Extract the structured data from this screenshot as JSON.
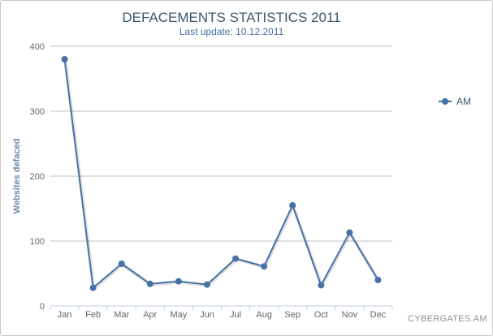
{
  "chart_data": {
    "type": "line",
    "title": "DEFACEMENTS STATISTICS 2011",
    "subtitle": "Last update: 10.12.2011",
    "ylabel": "Websites defaced",
    "xlabel": "",
    "categories": [
      "Jan",
      "Feb",
      "Mar",
      "Apr",
      "May",
      "Jun",
      "Jul",
      "Aug",
      "Sep",
      "Oct",
      "Nov",
      "Dec"
    ],
    "series": [
      {
        "name": "AM",
        "values": [
          380,
          28,
          65,
          34,
          38,
          33,
          73,
          61,
          155,
          32,
          113,
          40
        ]
      }
    ],
    "ylim": [
      0,
      400
    ],
    "yticks": [
      0,
      100,
      200,
      300,
      400
    ],
    "grid": true,
    "legend": "right",
    "credit": "CYBERGATES.AM",
    "colors": {
      "series": "#4572a7",
      "title": "#3e576f",
      "grid": "#c0c0c0",
      "axis": "#c0d0e0"
    }
  }
}
